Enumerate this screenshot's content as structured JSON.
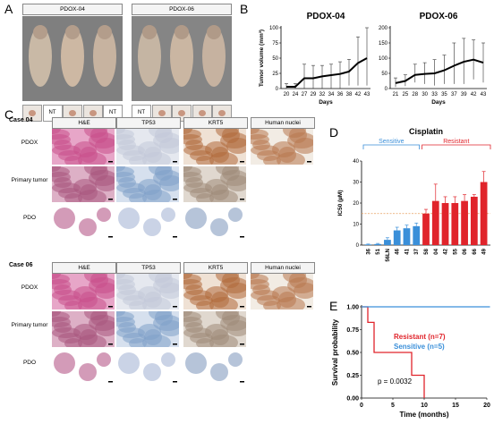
{
  "panels": {
    "a": "A",
    "b": "B",
    "c": "C",
    "d": "D",
    "e": "E"
  },
  "panel_a": {
    "groups": [
      {
        "label": "PDOX-04",
        "thumb_labels": [
          "",
          "NT",
          "",
          "",
          "NT"
        ]
      },
      {
        "label": "PDOX-06",
        "thumb_labels": [
          "NT",
          "",
          "",
          "",
          ""
        ]
      }
    ]
  },
  "panel_c": {
    "cases": [
      {
        "label": "Case 04",
        "columns": [
          "H&E",
          "TP53",
          "KRT5",
          "Human nuclei"
        ],
        "rows": [
          "PDOX",
          "Primary tumor",
          "PDO"
        ]
      },
      {
        "label": "Case 06",
        "columns": [
          "H&E",
          "TP53",
          "KRT5",
          "Human nuclei"
        ],
        "rows": [
          "PDOX",
          "Primary tumor",
          "PDO"
        ]
      }
    ]
  },
  "chart_data": [
    {
      "type": "line",
      "title": "PDOX-04",
      "xlabel": "Days",
      "ylabel": "Tumor volume (mm³)",
      "x": [
        20,
        24,
        27,
        29,
        32,
        34,
        36,
        38,
        42,
        43
      ],
      "values": [
        3,
        3,
        17,
        17,
        20,
        22,
        24,
        28,
        42,
        50
      ],
      "err_hi": [
        8,
        8,
        40,
        38,
        38,
        40,
        44,
        48,
        85,
        100
      ],
      "err_lo": [
        0,
        0,
        0,
        0,
        0,
        0,
        0,
        5,
        5,
        5
      ],
      "ylim": [
        0,
        100
      ],
      "yticks": [
        0,
        25,
        50,
        75,
        100
      ]
    },
    {
      "type": "line",
      "title": "PDOX-06",
      "xlabel": "Days",
      "ylabel": "",
      "x": [
        21,
        25,
        28,
        30,
        33,
        35,
        37,
        39,
        42,
        43
      ],
      "values": [
        18,
        25,
        45,
        48,
        50,
        60,
        75,
        88,
        95,
        85
      ],
      "err_hi": [
        35,
        45,
        80,
        85,
        95,
        110,
        150,
        165,
        160,
        150
      ],
      "err_lo": [
        5,
        8,
        20,
        15,
        10,
        15,
        15,
        15,
        30,
        20
      ],
      "ylim": [
        0,
        200
      ],
      "yticks": [
        0,
        50,
        100,
        150,
        200
      ]
    },
    {
      "type": "bar",
      "title": "Cisplatin",
      "ylabel": "IC50 (µM)",
      "categories": [
        "36",
        "51",
        "56LN",
        "46",
        "41",
        "37",
        "58",
        "04",
        "42",
        "55",
        "06",
        "66",
        "49"
      ],
      "values": [
        0.3,
        0.5,
        2.5,
        7,
        8,
        9,
        15,
        21,
        20,
        20,
        21,
        23,
        30
      ],
      "err": [
        0.2,
        0.3,
        1,
        1.5,
        1.5,
        1.5,
        2,
        8,
        3,
        3,
        3,
        1,
        5
      ],
      "groups": [
        {
          "name": "Sensitive",
          "color": "#3a8fd9"
        },
        {
          "name": "Resistant",
          "color": "#e0242b"
        }
      ],
      "threshold": 15,
      "ylim": [
        0,
        40
      ],
      "yticks": [
        0,
        10,
        20,
        30,
        40
      ]
    },
    {
      "type": "line",
      "title": "",
      "xlabel": "Time (months)",
      "ylabel": "Survival probability",
      "series": [
        {
          "name": "Resistant (n=7)",
          "color": "#e0242b",
          "steps": [
            [
              0,
              1.0
            ],
            [
              1,
              1.0
            ],
            [
              1,
              0.83
            ],
            [
              2,
              0.83
            ],
            [
              2,
              0.5
            ],
            [
              8,
              0.5
            ],
            [
              8,
              0.25
            ],
            [
              10,
              0.25
            ],
            [
              10,
              0
            ]
          ]
        },
        {
          "name": "Sensitive (n=5)",
          "color": "#3a8fd9",
          "steps": [
            [
              0,
              1.0
            ],
            [
              21,
              1.0
            ]
          ]
        }
      ],
      "annotation": "p = 0.0032",
      "xlim": [
        0,
        20
      ],
      "ylim": [
        0,
        1
      ],
      "xticks": [
        0,
        5,
        10,
        15,
        20
      ],
      "yticks": [
        "0.00",
        "0.25",
        "0.50",
        "0.75",
        "1.00"
      ]
    }
  ]
}
